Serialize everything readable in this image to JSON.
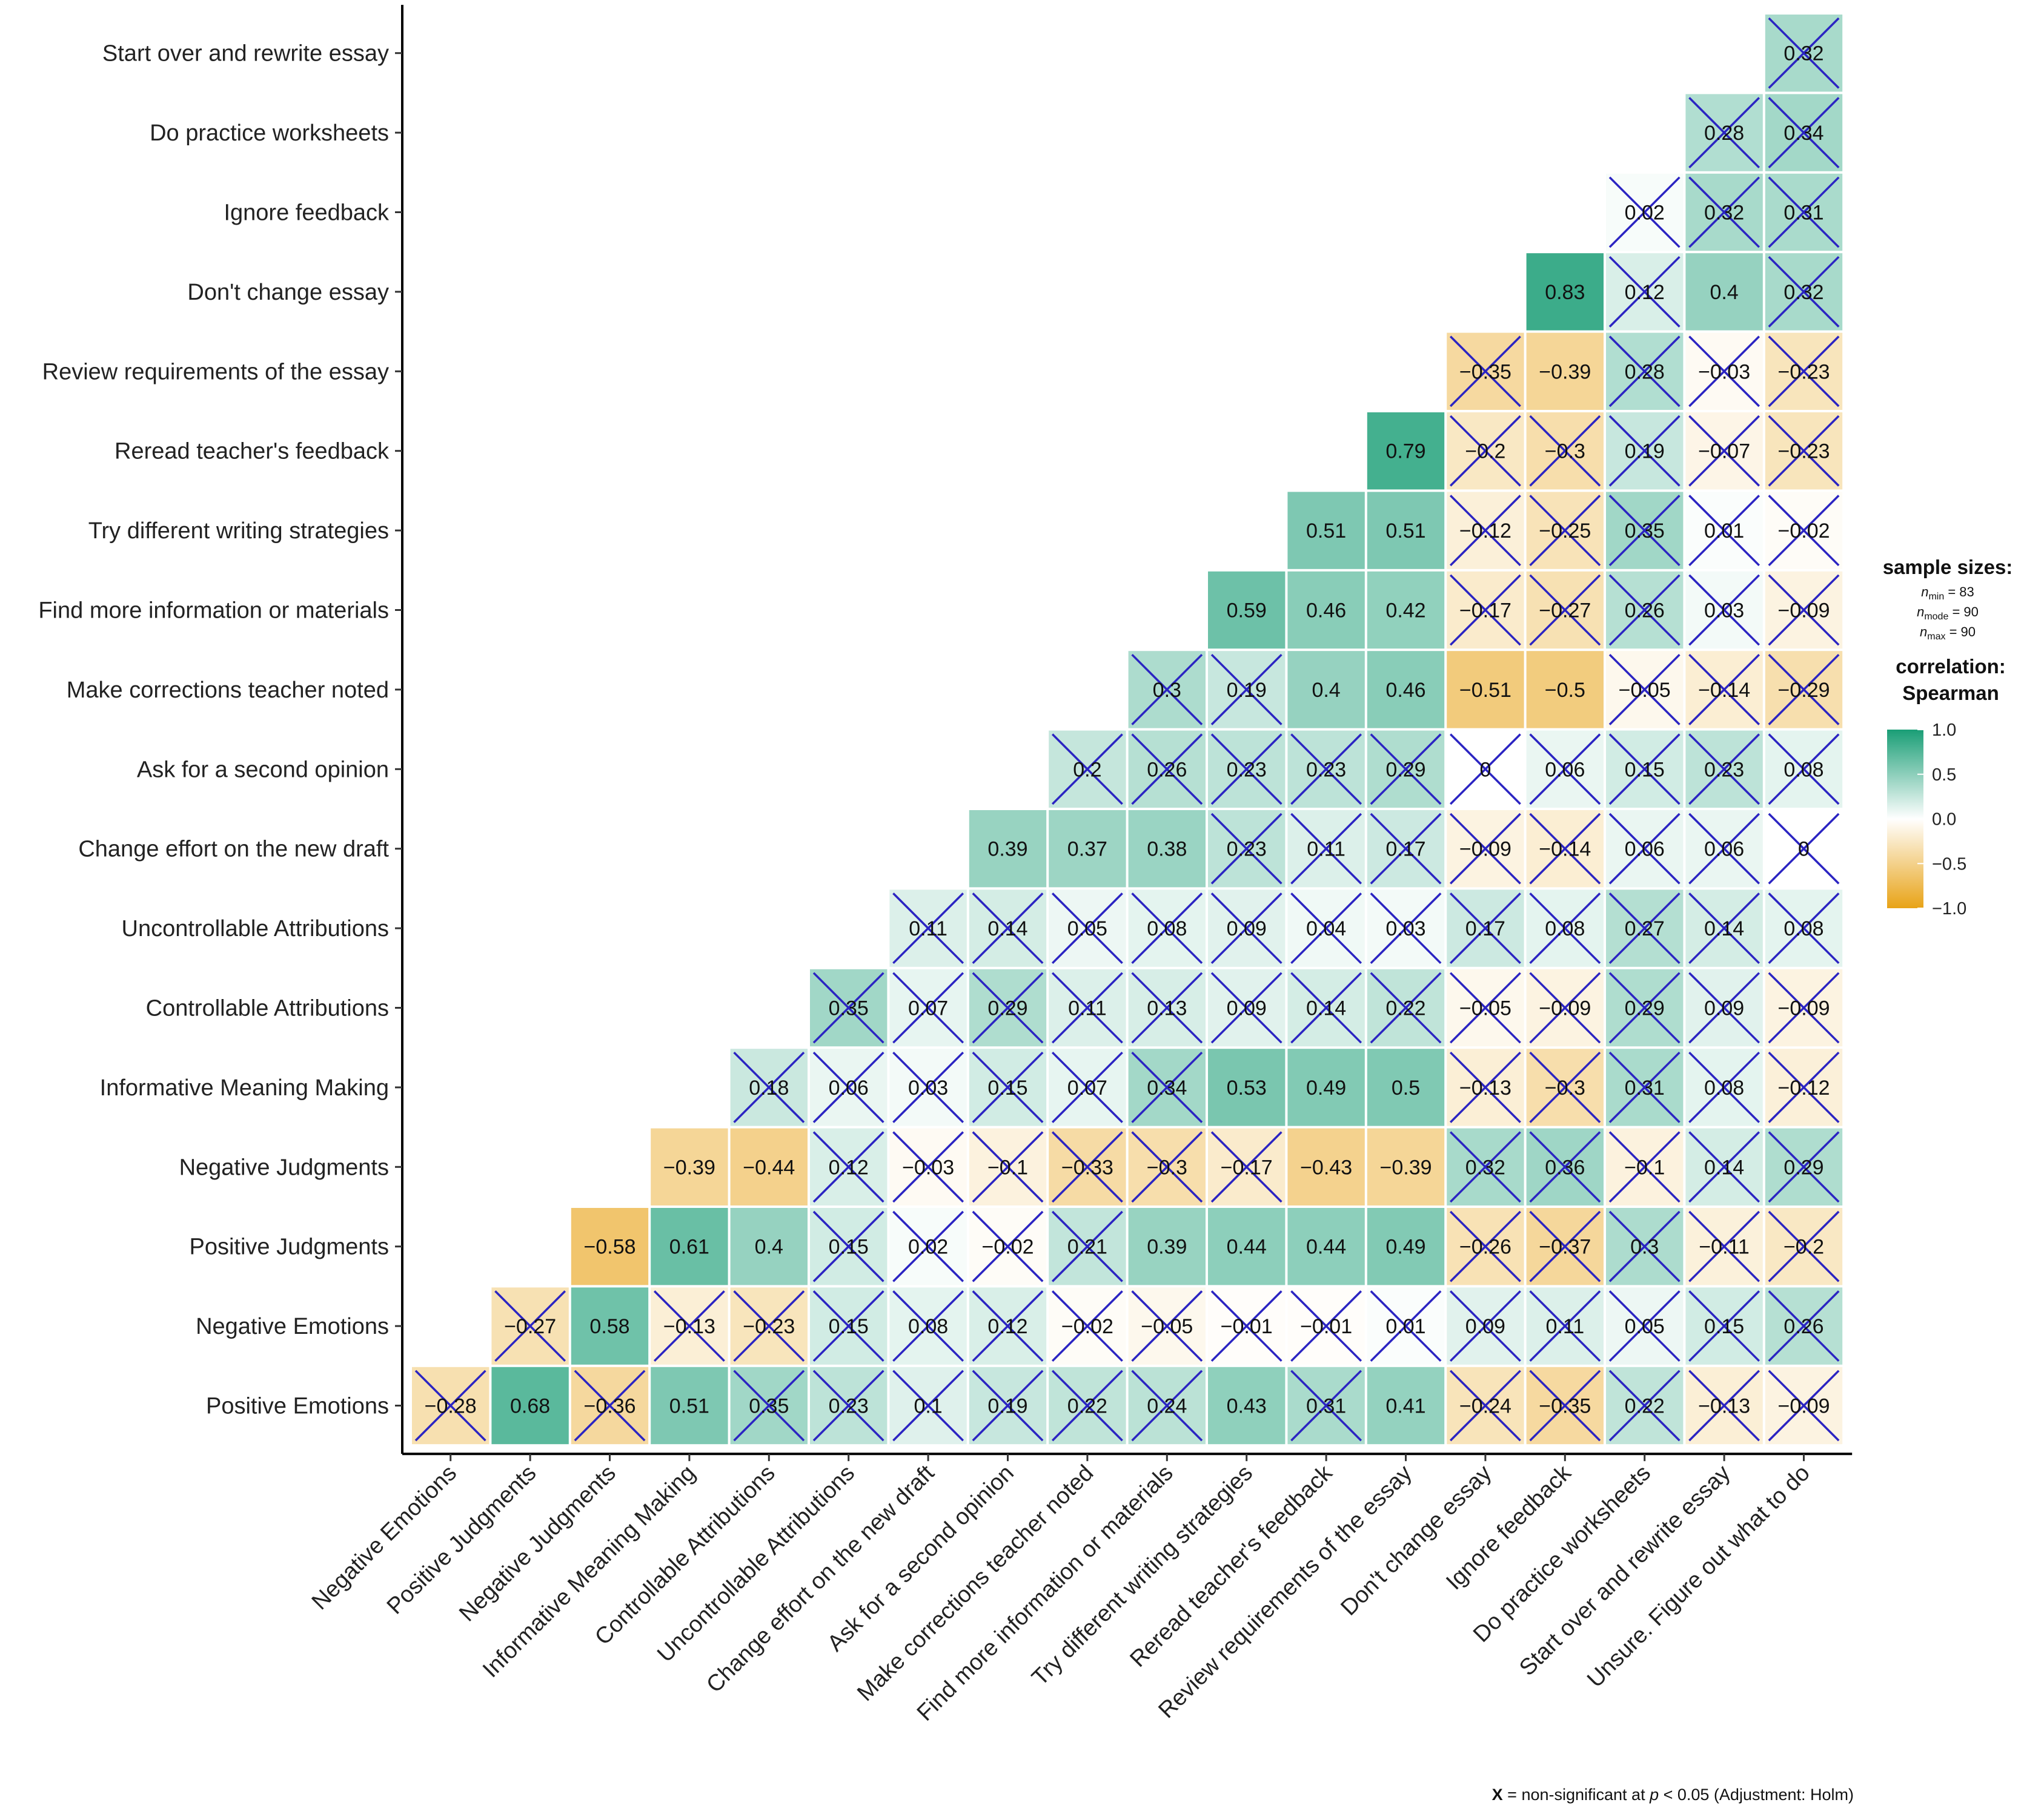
{
  "chart_data": {
    "type": "heatmap",
    "title": "",
    "method": "Spearman",
    "y_labels": [
      "Start over and rewrite essay",
      "Do practice worksheets",
      "Ignore feedback",
      "Don't change essay",
      "Review requirements of the essay",
      "Reread teacher's feedback",
      "Try different writing strategies",
      "Find more information or materials",
      "Make corrections teacher noted",
      "Ask for a second opinion",
      "Change effort on the new draft",
      "Uncontrollable Attributions",
      "Controllable Attributions",
      "Informative Meaning Making",
      "Negative Judgments",
      "Positive Judgments",
      "Negative Emotions",
      "Positive Emotions"
    ],
    "x_labels": [
      "Negative Emotions",
      "Positive Judgments",
      "Negative Judgments",
      "Informative Meaning Making",
      "Controllable Attributions",
      "Uncontrollable Attributions",
      "Change effort on the new draft",
      "Ask for a second opinion",
      "Make corrections teacher noted",
      "Find more information or materials",
      "Try different writing strategies",
      "Reread teacher's feedback",
      "Review requirements of the essay",
      "Don't change essay",
      "Ignore feedback",
      "Do practice worksheets",
      "Start over and rewrite essay",
      "Unsure. Figure out what to do"
    ],
    "values": [
      [
        null,
        null,
        null,
        null,
        null,
        null,
        null,
        null,
        null,
        null,
        null,
        null,
        null,
        null,
        null,
        null,
        null,
        0.32
      ],
      [
        null,
        null,
        null,
        null,
        null,
        null,
        null,
        null,
        null,
        null,
        null,
        null,
        null,
        null,
        null,
        null,
        0.28,
        0.34
      ],
      [
        null,
        null,
        null,
        null,
        null,
        null,
        null,
        null,
        null,
        null,
        null,
        null,
        null,
        null,
        null,
        0.02,
        0.32,
        0.31
      ],
      [
        null,
        null,
        null,
        null,
        null,
        null,
        null,
        null,
        null,
        null,
        null,
        null,
        null,
        null,
        0.83,
        0.12,
        0.4,
        0.32
      ],
      [
        null,
        null,
        null,
        null,
        null,
        null,
        null,
        null,
        null,
        null,
        null,
        null,
        null,
        -0.35,
        -0.39,
        0.28,
        -0.03,
        -0.23
      ],
      [
        null,
        null,
        null,
        null,
        null,
        null,
        null,
        null,
        null,
        null,
        null,
        null,
        0.79,
        -0.2,
        -0.3,
        0.19,
        -0.07,
        -0.23
      ],
      [
        null,
        null,
        null,
        null,
        null,
        null,
        null,
        null,
        null,
        null,
        null,
        0.51,
        0.51,
        -0.12,
        -0.25,
        0.35,
        0.01,
        -0.02
      ],
      [
        null,
        null,
        null,
        null,
        null,
        null,
        null,
        null,
        null,
        null,
        0.59,
        0.46,
        0.42,
        -0.17,
        -0.27,
        0.26,
        0.03,
        -0.09
      ],
      [
        null,
        null,
        null,
        null,
        null,
        null,
        null,
        null,
        null,
        0.3,
        0.19,
        0.4,
        0.46,
        -0.51,
        -0.5,
        -0.05,
        -0.14,
        -0.29
      ],
      [
        null,
        null,
        null,
        null,
        null,
        null,
        null,
        null,
        0.2,
        0.26,
        0.23,
        0.23,
        0.29,
        0,
        0.06,
        0.15,
        0.23,
        0.08
      ],
      [
        null,
        null,
        null,
        null,
        null,
        null,
        null,
        0.39,
        0.37,
        0.38,
        0.23,
        0.11,
        0.17,
        -0.09,
        -0.14,
        0.06,
        0.06,
        0
      ],
      [
        null,
        null,
        null,
        null,
        null,
        null,
        0.11,
        0.14,
        0.05,
        0.08,
        0.09,
        0.04,
        0.03,
        0.17,
        0.08,
        0.27,
        0.14,
        0.08
      ],
      [
        null,
        null,
        null,
        null,
        null,
        0.35,
        0.07,
        0.29,
        0.11,
        0.13,
        0.09,
        0.14,
        0.22,
        -0.05,
        -0.09,
        0.29,
        0.09,
        -0.09
      ],
      [
        null,
        null,
        null,
        null,
        0.18,
        0.06,
        0.03,
        0.15,
        0.07,
        0.34,
        0.53,
        0.49,
        0.5,
        -0.13,
        -0.3,
        0.31,
        0.08,
        -0.12
      ],
      [
        null,
        null,
        null,
        -0.39,
        -0.44,
        0.12,
        -0.03,
        -0.1,
        -0.33,
        -0.3,
        -0.17,
        -0.43,
        -0.39,
        0.32,
        0.36,
        -0.1,
        0.14,
        0.29
      ],
      [
        null,
        null,
        -0.58,
        0.61,
        0.4,
        0.15,
        0.02,
        -0.02,
        0.21,
        0.39,
        0.44,
        0.44,
        0.49,
        -0.26,
        -0.37,
        0.3,
        -0.11,
        -0.2
      ],
      [
        null,
        -0.27,
        0.58,
        -0.13,
        -0.23,
        0.15,
        0.08,
        0.12,
        -0.02,
        -0.05,
        -0.01,
        -0.01,
        0.01,
        0.09,
        0.11,
        0.05,
        0.15,
        0.26
      ],
      [
        -0.28,
        0.68,
        -0.36,
        0.51,
        0.35,
        0.23,
        0.1,
        0.19,
        0.22,
        0.24,
        0.43,
        0.31,
        0.41,
        -0.24,
        -0.35,
        0.22,
        -0.13,
        -0.09
      ]
    ],
    "significant": [
      [
        null,
        null,
        null,
        null,
        null,
        null,
        null,
        null,
        null,
        null,
        null,
        null,
        null,
        null,
        null,
        null,
        null,
        false
      ],
      [
        null,
        null,
        null,
        null,
        null,
        null,
        null,
        null,
        null,
        null,
        null,
        null,
        null,
        null,
        null,
        null,
        false,
        false
      ],
      [
        null,
        null,
        null,
        null,
        null,
        null,
        null,
        null,
        null,
        null,
        null,
        null,
        null,
        null,
        null,
        false,
        false,
        false
      ],
      [
        null,
        null,
        null,
        null,
        null,
        null,
        null,
        null,
        null,
        null,
        null,
        null,
        null,
        null,
        true,
        false,
        true,
        false
      ],
      [
        null,
        null,
        null,
        null,
        null,
        null,
        null,
        null,
        null,
        null,
        null,
        null,
        null,
        false,
        true,
        false,
        false,
        false
      ],
      [
        null,
        null,
        null,
        null,
        null,
        null,
        null,
        null,
        null,
        null,
        null,
        null,
        true,
        false,
        false,
        false,
        false,
        false
      ],
      [
        null,
        null,
        null,
        null,
        null,
        null,
        null,
        null,
        null,
        null,
        null,
        true,
        true,
        false,
        false,
        false,
        false,
        false
      ],
      [
        null,
        null,
        null,
        null,
        null,
        null,
        null,
        null,
        null,
        null,
        true,
        true,
        true,
        false,
        false,
        false,
        false,
        false
      ],
      [
        null,
        null,
        null,
        null,
        null,
        null,
        null,
        null,
        null,
        false,
        false,
        true,
        true,
        true,
        true,
        false,
        false,
        false
      ],
      [
        null,
        null,
        null,
        null,
        null,
        null,
        null,
        null,
        false,
        false,
        false,
        false,
        false,
        false,
        false,
        false,
        false,
        false
      ],
      [
        null,
        null,
        null,
        null,
        null,
        null,
        null,
        true,
        true,
        true,
        false,
        false,
        false,
        false,
        false,
        false,
        false,
        false
      ],
      [
        null,
        null,
        null,
        null,
        null,
        null,
        false,
        false,
        false,
        false,
        false,
        false,
        false,
        false,
        false,
        false,
        false,
        false
      ],
      [
        null,
        null,
        null,
        null,
        null,
        false,
        false,
        false,
        false,
        false,
        false,
        false,
        false,
        false,
        false,
        false,
        false,
        false
      ],
      [
        null,
        null,
        null,
        null,
        false,
        false,
        false,
        false,
        false,
        false,
        true,
        true,
        true,
        false,
        false,
        false,
        false,
        false
      ],
      [
        null,
        null,
        null,
        true,
        true,
        false,
        false,
        false,
        false,
        false,
        false,
        true,
        true,
        false,
        false,
        false,
        false,
        false
      ],
      [
        null,
        null,
        true,
        true,
        true,
        false,
        false,
        false,
        false,
        true,
        true,
        true,
        true,
        false,
        false,
        false,
        false,
        false
      ],
      [
        null,
        false,
        true,
        false,
        false,
        false,
        false,
        false,
        false,
        false,
        false,
        false,
        false,
        false,
        false,
        false,
        false,
        false
      ],
      [
        false,
        true,
        false,
        true,
        false,
        false,
        false,
        false,
        false,
        false,
        true,
        false,
        true,
        false,
        false,
        false,
        false,
        false
      ]
    ],
    "display": [
      [
        null,
        null,
        null,
        null,
        null,
        null,
        null,
        null,
        null,
        null,
        null,
        null,
        null,
        null,
        null,
        null,
        null,
        "0.32"
      ],
      [
        null,
        null,
        null,
        null,
        null,
        null,
        null,
        null,
        null,
        null,
        null,
        null,
        null,
        null,
        null,
        null,
        "0.28",
        "0.34"
      ],
      [
        null,
        null,
        null,
        null,
        null,
        null,
        null,
        null,
        null,
        null,
        null,
        null,
        null,
        null,
        null,
        "0.02",
        "0.32",
        "0.31"
      ],
      [
        null,
        null,
        null,
        null,
        null,
        null,
        null,
        null,
        null,
        null,
        null,
        null,
        null,
        null,
        "0.83",
        "0.12",
        "0.4",
        "0.32"
      ],
      [
        null,
        null,
        null,
        null,
        null,
        null,
        null,
        null,
        null,
        null,
        null,
        null,
        null,
        "−0.35",
        "−0.39",
        "0.28",
        "−0.03",
        "−0.23"
      ],
      [
        null,
        null,
        null,
        null,
        null,
        null,
        null,
        null,
        null,
        null,
        null,
        null,
        "0.79",
        "−0.2",
        "−0.3",
        "0.19",
        "−0.07",
        "−0.23"
      ],
      [
        null,
        null,
        null,
        null,
        null,
        null,
        null,
        null,
        null,
        null,
        null,
        "0.51",
        "0.51",
        "−0.12",
        "−0.25",
        "0.35",
        "0.01",
        "−0.02"
      ],
      [
        null,
        null,
        null,
        null,
        null,
        null,
        null,
        null,
        null,
        null,
        "0.59",
        "0.46",
        "0.42",
        "−0.17",
        "−0.27",
        "0.26",
        "0.03",
        "−0.09"
      ],
      [
        null,
        null,
        null,
        null,
        null,
        null,
        null,
        null,
        null,
        "0.3",
        "0.19",
        "0.4",
        "0.46",
        "−0.51",
        "−0.5",
        "−0.05",
        "−0.14",
        "−0.29"
      ],
      [
        null,
        null,
        null,
        null,
        null,
        null,
        null,
        null,
        "0.2",
        "0.26",
        "0.23",
        "0.23",
        "0.29",
        "0",
        "0.06",
        "0.15",
        "0.23",
        "0.08"
      ],
      [
        null,
        null,
        null,
        null,
        null,
        null,
        null,
        "0.39",
        "0.37",
        "0.38",
        "0.23",
        "0.11",
        "0.17",
        "−0.09",
        "−0.14",
        "0.06",
        "0.06",
        "0"
      ],
      [
        null,
        null,
        null,
        null,
        null,
        null,
        "0.11",
        "0.14",
        "0.05",
        "0.08",
        "0.09",
        "0.04",
        "0.03",
        "0.17",
        "0.08",
        "0.27",
        "0.14",
        "0.08"
      ],
      [
        null,
        null,
        null,
        null,
        null,
        "0.35",
        "0.07",
        "0.29",
        "0.11",
        "0.13",
        "0.09",
        "0.14",
        "0.22",
        "−0.05",
        "−0.09",
        "0.29",
        "0.09",
        "−0.09"
      ],
      [
        null,
        null,
        null,
        null,
        "0.18",
        "0.06",
        "0.03",
        "0.15",
        "0.07",
        "0.34",
        "0.53",
        "0.49",
        "0.5",
        "−0.13",
        "−0.3",
        "0.31",
        "0.08",
        "−0.12"
      ],
      [
        null,
        null,
        null,
        "−0.39",
        "−0.44",
        "0.12",
        "−0.03",
        "−0.1",
        "−0.33",
        "−0.3",
        "−0.17",
        "−0.43",
        "−0.39",
        "0.32",
        "0.36",
        "−0.1",
        "0.14",
        "0.29"
      ],
      [
        null,
        null,
        "−0.58",
        "0.61",
        "0.4",
        "0.15",
        "0.02",
        "−0.02",
        "0.21",
        "0.39",
        "0.44",
        "0.44",
        "0.49",
        "−0.26",
        "−0.37",
        "0.3",
        "−0.11",
        "−0.2"
      ],
      [
        null,
        "−0.27",
        "0.58",
        "−0.13",
        "−0.23",
        "0.15",
        "0.08",
        "0.12",
        "−0.02",
        "−0.05",
        "−0.01",
        "−0.01",
        "0.01",
        "0.09",
        "0.11",
        "0.05",
        "0.15",
        "0.26"
      ],
      [
        "−0.28",
        "0.68",
        "−0.36",
        "0.51",
        "0.35",
        "0.23",
        "0.1",
        "0.19",
        "0.22",
        "0.24",
        "0.43",
        "0.31",
        "0.41",
        "−0.24",
        "−0.35",
        "0.22",
        "−0.13",
        "−0.09"
      ]
    ],
    "legend": {
      "sample_sizes_title": "sample sizes:",
      "n_min": "n",
      "n_min_sub": "min",
      "n_min_value": " = 83",
      "n_mode": "n",
      "n_mode_sub": "mode",
      "n_mode_value": " = 90",
      "n_max": "n",
      "n_max_sub": "max",
      "n_max_value": " = 90",
      "correlation_title": "correlation:",
      "correlation_method": "Spearman",
      "ticks": [
        1.0,
        0.5,
        0.0,
        -0.5,
        -1.0
      ],
      "tick_labels": [
        "1.0",
        "0.5",
        "0.0",
        "−0.5",
        "−1.0"
      ],
      "range": [
        -1,
        1
      ],
      "colors": {
        "high": "#1a9e76",
        "mid": "#ffffff",
        "low": "#e8a317"
      }
    },
    "caption": {
      "symbol": "X",
      "pre": " = non-significant at ",
      "p": "p",
      "post": " < 0.05 (Adjustment: Holm)"
    },
    "cross_color": "#2b24c2"
  }
}
